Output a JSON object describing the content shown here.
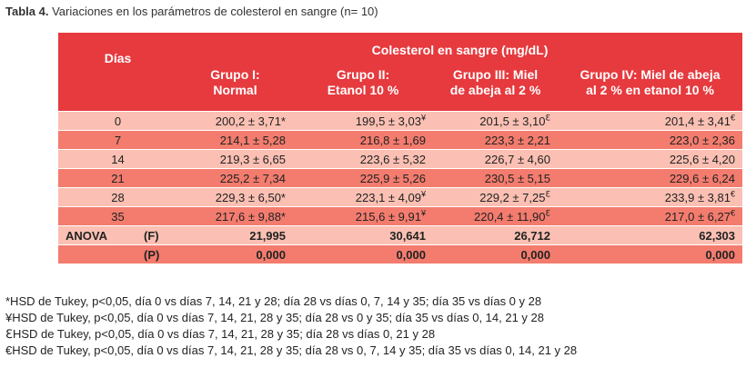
{
  "caption": {
    "label": "Tabla 4.",
    "text": " Variaciones en los parámetros de colesterol en sangre (n= 10)"
  },
  "table": {
    "super_header": "Colesterol en sangre (mg/dL)",
    "days_header": "Días",
    "groups": [
      {
        "line1": "Grupo I:",
        "line2": "Normal"
      },
      {
        "line1": "Grupo II:",
        "line2": "Etanol 10 %"
      },
      {
        "line1": "Grupo III: Miel",
        "line2": "de abeja al 2 %"
      },
      {
        "line1": "Grupo IV: Miel de abeja",
        "line2": "al 2 % en etanol 10 %"
      }
    ],
    "rows": [
      {
        "day": "0",
        "g1": "200,2 ± 3,71*",
        "g2": "199,5 ± 3,03",
        "g2s": "¥",
        "g3": "201,5 ± 3,10",
        "g3s": "ℇ",
        "g4": "201,4 ± 3,41",
        "g4s": "€"
      },
      {
        "day": "7",
        "g1": "214,1 ± 5,28",
        "g2": "216,8 ± 1,69",
        "g2s": "",
        "g3": "223,3 ± 2,21",
        "g3s": "",
        "g4": "223,0 ± 2,36",
        "g4s": ""
      },
      {
        "day": "14",
        "g1": "219,3 ± 6,65",
        "g2": "223,6 ± 5,32",
        "g2s": "",
        "g3": "226,7 ± 4,60",
        "g3s": "",
        "g4": "225,6 ± 4,20",
        "g4s": ""
      },
      {
        "day": "21",
        "g1": "225,2 ± 7,34",
        "g2": "225,9 ± 5,26",
        "g2s": "",
        "g3": "230,5 ± 5,15",
        "g3s": "",
        "g4": "229,6 ± 6,24",
        "g4s": ""
      },
      {
        "day": "28",
        "g1": "229,3 ± 6,50*",
        "g2": "223,1 ± 4,09",
        "g2s": "¥",
        "g3": "229,2 ± 7,25",
        "g3s": "ℇ",
        "g4": "233,9 ± 3,81",
        "g4s": "€"
      },
      {
        "day": "35",
        "g1": "217,6 ± 9,88*",
        "g2": "215,6 ± 9,91",
        "g2s": "¥",
        "g3": "220,4 ± 11,90",
        "g3s": "ℇ",
        "g4": "217,0 ± 6,27",
        "g4s": "€"
      }
    ],
    "anova": {
      "label": "ANOVA",
      "f_label": "(F)",
      "f_values": [
        "21,995",
        "30,641",
        "26,712",
        "62,303"
      ],
      "p_label": "(P)",
      "p_values": [
        "0,000",
        "0,000",
        "0,000",
        "0,000"
      ]
    }
  },
  "notes": [
    "*HSD de Tukey, p<0,05, día 0 vs días 7, 14, 21 y 28; día 28 vs días 0, 7, 14 y 35; día 35 vs días 0 y 28",
    "¥HSD de Tukey, p<0,05, día 0 vs días 7, 14, 21, 28 y 35; día 28 vs 0 y 35; día 35 vs días 0, 14, 21 y 28",
    "ℇHSD de Tukey, p<0,05, día 0 vs días 7, 14, 21, 28 y 35; día 28 vs días 0, 21 y 28",
    "€HSD de Tukey, p<0,05, día 0 vs días 7, 14, 21, 28 y 35; día 28 vs 0, 7, 14 y 35; día 35 vs días 0, 14, 21 y 28"
  ],
  "colors": {
    "header": "#e63a3e",
    "row_light": "#fbc0b3",
    "row_dark": "#f37c6e"
  }
}
